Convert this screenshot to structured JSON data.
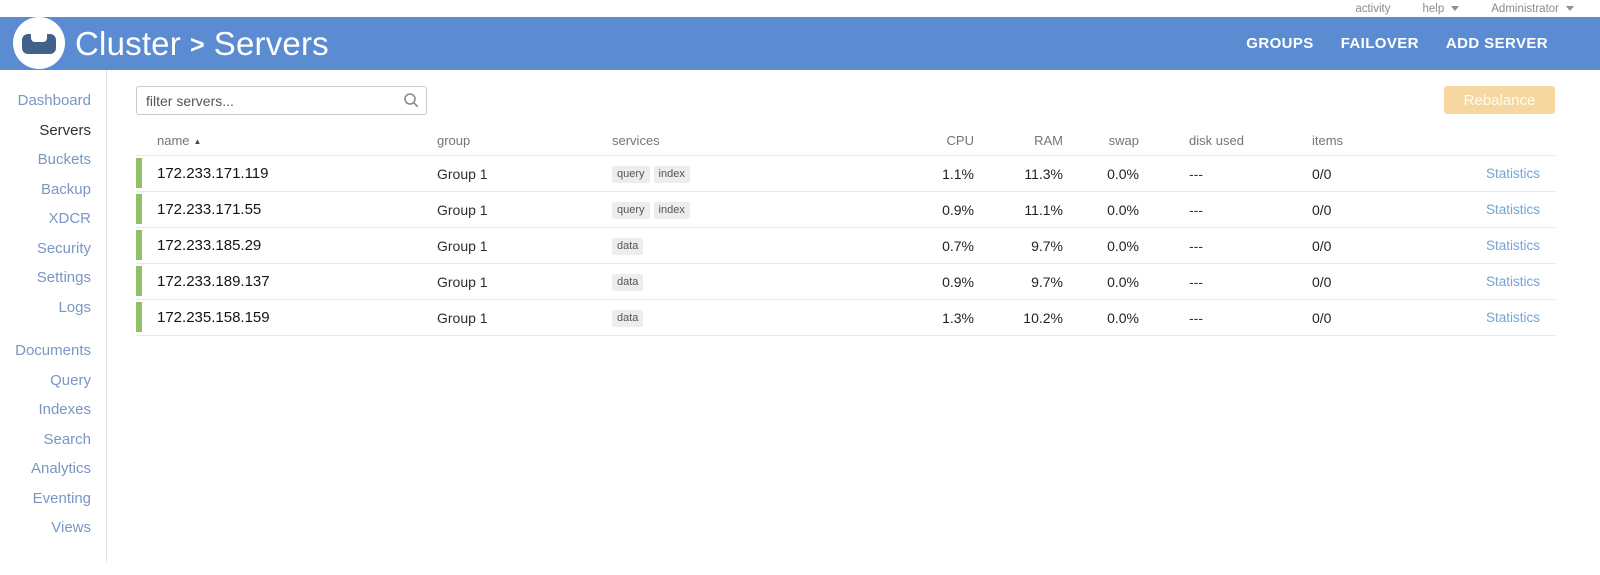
{
  "colors": {
    "header_bg": "#5b8cd2",
    "status_green": "#90bf66",
    "active_indicator": "#6d97cf",
    "rebalance_bg": "#f6d7a0",
    "link_blue": "#74a4d6",
    "sidebar_link": "#7b96c3",
    "logo_couch": "#43628b"
  },
  "utility_bar": {
    "items": [
      {
        "label": "activity",
        "caret": false
      },
      {
        "label": "help",
        "caret": true
      },
      {
        "label": "Administrator",
        "caret": true
      }
    ]
  },
  "header": {
    "breadcrumb": {
      "cluster": "Cluster",
      "separator": ">",
      "section": "Servers"
    },
    "nav": [
      {
        "label": "GROUPS"
      },
      {
        "label": "FAILOVER"
      },
      {
        "label": "ADD SERVER"
      }
    ]
  },
  "sidebar": {
    "groups": [
      {
        "items": [
          {
            "label": "Dashboard",
            "active": false
          },
          {
            "label": "Servers",
            "active": true
          },
          {
            "label": "Buckets",
            "active": false
          },
          {
            "label": "Backup",
            "active": false
          },
          {
            "label": "XDCR",
            "active": false
          },
          {
            "label": "Security",
            "active": false
          },
          {
            "label": "Settings",
            "active": false
          },
          {
            "label": "Logs",
            "active": false
          }
        ]
      },
      {
        "items": [
          {
            "label": "Documents",
            "active": false
          },
          {
            "label": "Query",
            "active": false
          },
          {
            "label": "Indexes",
            "active": false
          },
          {
            "label": "Search",
            "active": false
          },
          {
            "label": "Analytics",
            "active": false
          },
          {
            "label": "Eventing",
            "active": false
          },
          {
            "label": "Views",
            "active": false
          }
        ]
      }
    ]
  },
  "toolbar": {
    "filter_placeholder": "filter servers...",
    "rebalance_label": "Rebalance"
  },
  "table": {
    "headers": {
      "name": "name",
      "sort_asc": "▲",
      "group": "group",
      "services": "services",
      "cpu": "CPU",
      "ram": "RAM",
      "swap": "swap",
      "disk": "disk used",
      "items": "items"
    },
    "statistics_label": "Statistics",
    "rows": [
      {
        "name": "172.233.171.119",
        "group": "Group 1",
        "services": [
          "query",
          "index"
        ],
        "cpu": "1.1%",
        "ram": "11.3%",
        "swap": "0.0%",
        "disk_used": "---",
        "items": "0/0"
      },
      {
        "name": "172.233.171.55",
        "group": "Group 1",
        "services": [
          "query",
          "index"
        ],
        "cpu": "0.9%",
        "ram": "11.1%",
        "swap": "0.0%",
        "disk_used": "---",
        "items": "0/0"
      },
      {
        "name": "172.233.185.29",
        "group": "Group 1",
        "services": [
          "data"
        ],
        "cpu": "0.7%",
        "ram": "9.7%",
        "swap": "0.0%",
        "disk_used": "---",
        "items": "0/0"
      },
      {
        "name": "172.233.189.137",
        "group": "Group 1",
        "services": [
          "data"
        ],
        "cpu": "0.9%",
        "ram": "9.7%",
        "swap": "0.0%",
        "disk_used": "---",
        "items": "0/0"
      },
      {
        "name": "172.235.158.159",
        "group": "Group 1",
        "services": [
          "data"
        ],
        "cpu": "1.3%",
        "ram": "10.2%",
        "swap": "0.0%",
        "disk_used": "---",
        "items": "0/0"
      }
    ]
  }
}
